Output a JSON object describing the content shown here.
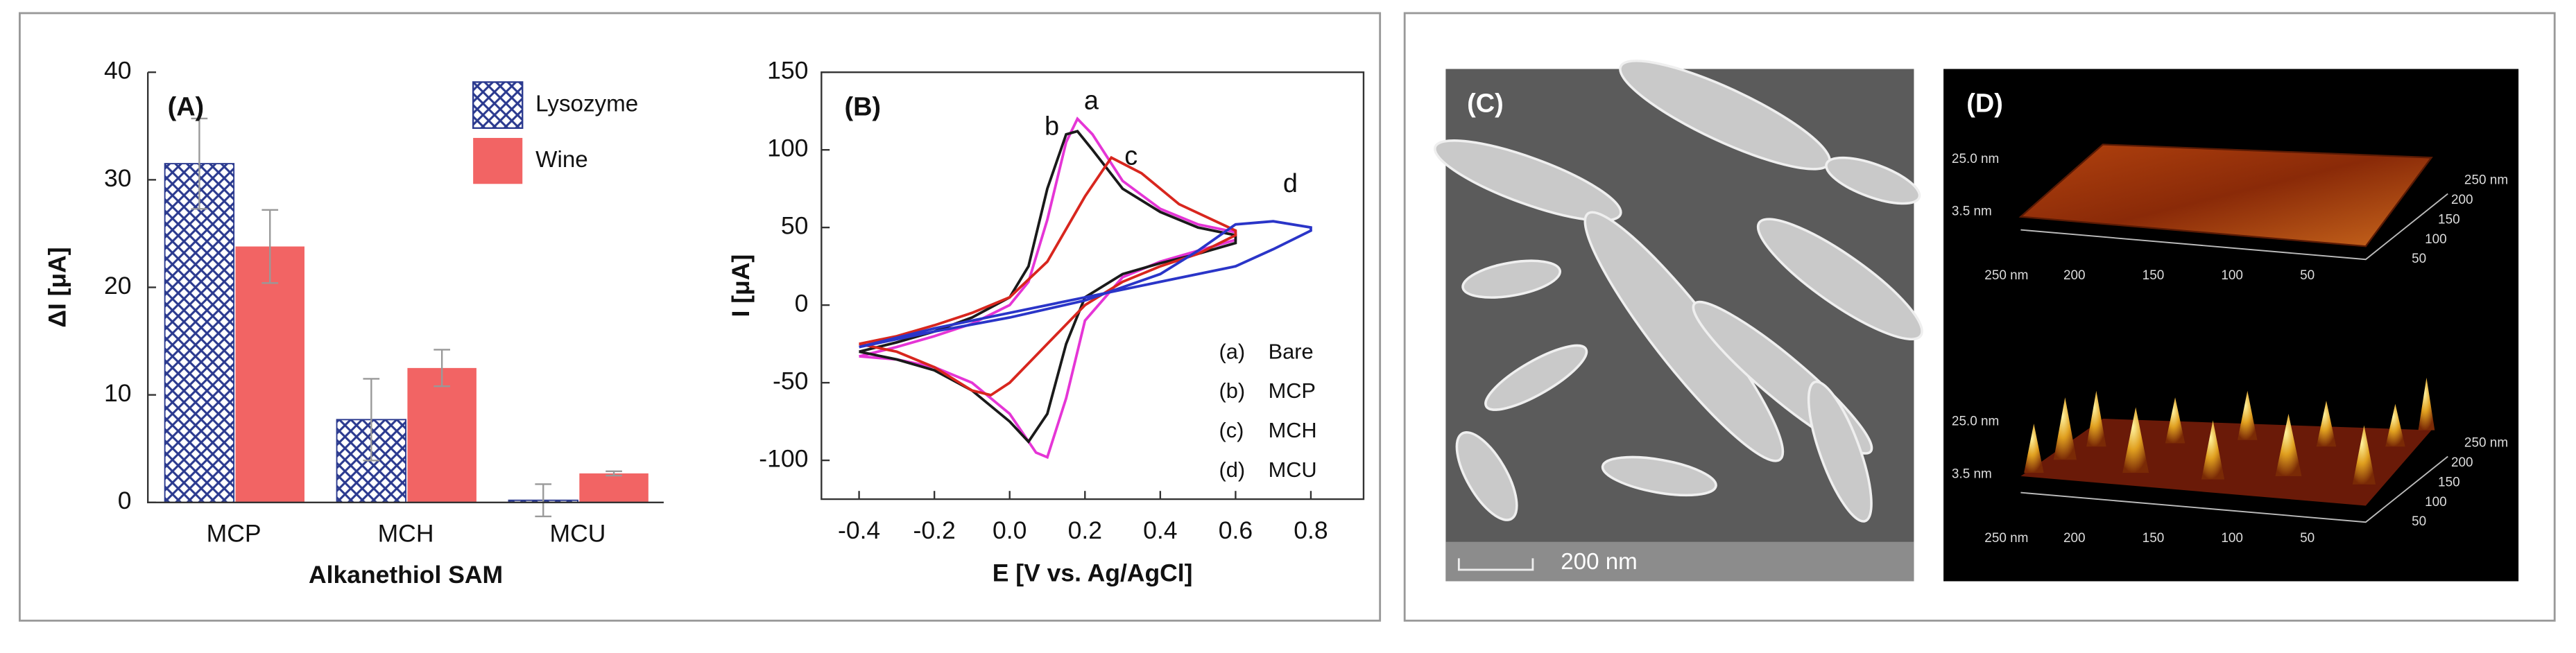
{
  "chart_data": [
    {
      "type": "bar",
      "panel_label": "(A)",
      "x_label": "Alkanethiol SAM",
      "y_label": "ΔI [μA]",
      "categories": [
        "MCP",
        "MCH",
        "MCU"
      ],
      "series": [
        {
          "name": "Lysozyme",
          "color": "#2b3a8f",
          "pattern": "crosshatch",
          "values": [
            31.5,
            7.7,
            0.2
          ],
          "errors": [
            4.2,
            3.8,
            1.5
          ]
        },
        {
          "name": "Wine",
          "color": "#f26464",
          "values": [
            23.8,
            12.5,
            2.7
          ],
          "errors": [
            3.4,
            1.7,
            0.2
          ]
        }
      ],
      "ylim": [
        0,
        40
      ],
      "yticks": [
        0,
        10,
        20,
        30,
        40
      ],
      "legend": "top-right"
    },
    {
      "type": "line",
      "panel_label": "(B)",
      "x_label": "E [V vs. Ag/AgCl]",
      "y_label": "I [μA]",
      "series": [
        {
          "name": "Bare",
          "legend_key": "(a)",
          "label": "a",
          "color": "#e535d6",
          "x": [
            -0.4,
            -0.3,
            -0.2,
            -0.1,
            0,
            0.05,
            0.1,
            0.15,
            0.18,
            0.22,
            0.3,
            0.4,
            0.5,
            0.6,
            0.6,
            0.5,
            0.4,
            0.3,
            0.2,
            0.15,
            0.1,
            0.07,
            0,
            -0.1,
            -0.2,
            -0.3,
            -0.4
          ],
          "values": [
            -33,
            -27,
            -20,
            -12,
            0,
            15,
            55,
            105,
            120,
            110,
            80,
            62,
            52,
            47,
            42,
            35,
            28,
            18,
            -10,
            -60,
            -98,
            -95,
            -70,
            -50,
            -40,
            -35,
            -33
          ]
        },
        {
          "name": "MCP",
          "legend_key": "(b)",
          "label": "b",
          "color": "#1a1a1a",
          "x": [
            -0.4,
            -0.3,
            -0.2,
            -0.1,
            0,
            0.05,
            0.1,
            0.15,
            0.18,
            0.22,
            0.3,
            0.4,
            0.5,
            0.6,
            0.6,
            0.5,
            0.4,
            0.3,
            0.2,
            0.15,
            0.1,
            0.05,
            0,
            -0.1,
            -0.2,
            -0.3,
            -0.4
          ],
          "values": [
            -30,
            -24,
            -17,
            -8,
            5,
            25,
            75,
            110,
            112,
            100,
            75,
            60,
            50,
            45,
            40,
            33,
            27,
            20,
            5,
            -25,
            -70,
            -88,
            -75,
            -55,
            -42,
            -35,
            -30
          ]
        },
        {
          "name": "MCH",
          "legend_key": "(c)",
          "label": "c",
          "color": "#d8261e",
          "x": [
            -0.4,
            -0.3,
            -0.2,
            -0.1,
            0,
            0.1,
            0.2,
            0.27,
            0.35,
            0.45,
            0.6,
            0.6,
            0.5,
            0.4,
            0.3,
            0.2,
            0.1,
            0,
            -0.05,
            -0.1,
            -0.2,
            -0.3,
            -0.4
          ],
          "values": [
            -25,
            -20,
            -13,
            -5,
            5,
            28,
            70,
            95,
            85,
            65,
            48,
            45,
            33,
            25,
            15,
            0,
            -25,
            -50,
            -58,
            -55,
            -40,
            -30,
            -25
          ]
        },
        {
          "name": "MCU",
          "legend_key": "(d)",
          "label": "d",
          "color": "#2a35c8",
          "x": [
            -0.4,
            -0.2,
            0,
            0.2,
            0.4,
            0.5,
            0.6,
            0.7,
            0.8,
            0.8,
            0.7,
            0.6,
            0.4,
            0.2,
            0,
            -0.2,
            -0.4
          ],
          "values": [
            -27,
            -17,
            -8,
            3,
            20,
            35,
            52,
            54,
            50,
            48,
            36,
            25,
            15,
            5,
            -5,
            -15,
            -27
          ]
        }
      ],
      "xlim": [
        -0.5,
        0.94
      ],
      "xticks": [
        -0.4,
        -0.2,
        {
          "value": 0,
          "label": "0.0"
        },
        0.2,
        0.4,
        0.6,
        0.8
      ],
      "ylim": [
        -125,
        150
      ],
      "yticks": [
        -100,
        -50,
        0,
        50,
        100,
        150
      ],
      "legend": "bottom-right"
    }
  ],
  "images": {
    "sem": {
      "label": "(C)",
      "scale_bar": "200 nm"
    },
    "afm": {
      "label": "(D)",
      "surfaces": [
        {
          "z_labels": [
            "25.0 nm",
            "3.5 nm"
          ],
          "x_labels": [
            "250 nm",
            "200",
            "150",
            "100",
            "50"
          ],
          "y_labels": [
            "250 nm",
            "200",
            "150",
            "100",
            "50"
          ]
        },
        {
          "z_labels": [
            "25.0 nm",
            "3.5 nm"
          ],
          "x_labels": [
            "250 nm",
            "200",
            "150",
            "100",
            "50"
          ],
          "y_labels": [
            "250 nm",
            "200",
            "150",
            "100",
            "50"
          ]
        }
      ]
    }
  }
}
